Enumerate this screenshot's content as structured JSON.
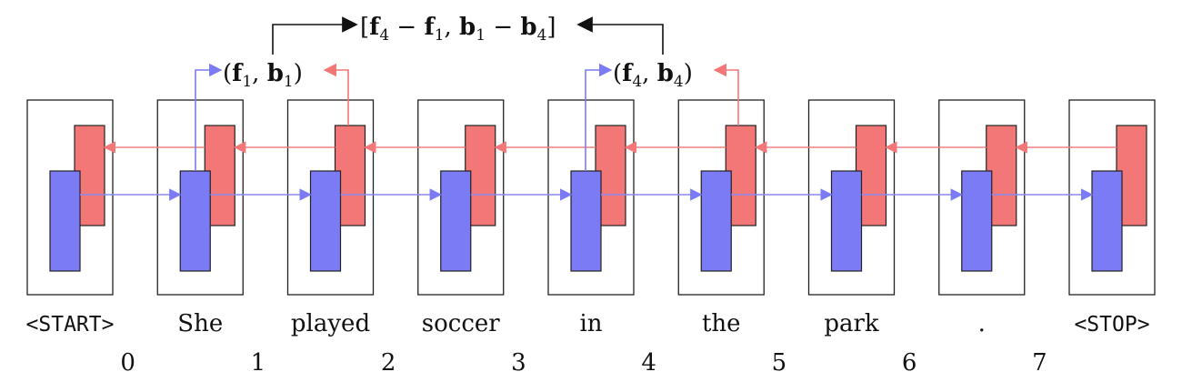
{
  "tokens": [
    {
      "text": "<START>",
      "mono": true
    },
    {
      "text": "She",
      "mono": false
    },
    {
      "text": "played",
      "mono": false
    },
    {
      "text": "soccer",
      "mono": false
    },
    {
      "text": "in",
      "mono": false
    },
    {
      "text": "the",
      "mono": false
    },
    {
      "text": "park",
      "mono": false
    },
    {
      "text": ".",
      "mono": false
    },
    {
      "text": "<STOP>",
      "mono": true
    }
  ],
  "boundaries": [
    "0",
    "1",
    "2",
    "3",
    "4",
    "5",
    "6",
    "7"
  ],
  "span_labels": {
    "left": {
      "open": "(",
      "f": "f",
      "f_sub": "1",
      "comma": ", ",
      "b": "b",
      "b_sub": "1",
      "close": ")"
    },
    "right": {
      "open": "(",
      "f": "f",
      "f_sub": "4",
      "comma": ", ",
      "b": "b",
      "b_sub": "4",
      "close": ")"
    },
    "top": {
      "open": "[",
      "f1": "f",
      "f1_sub": "4",
      "minus1": " − ",
      "f2": "f",
      "f2_sub": "1",
      "comma": ", ",
      "b1": "b",
      "b1_sub": "1",
      "minus2": " − ",
      "b2": "b",
      "b2_sub": "4",
      "close": "]"
    }
  },
  "colors": {
    "forward": "#7b7bf5",
    "forward_line": "#8a8af0",
    "backward": "#f47777",
    "backward_line": "#ee8080",
    "frame": "#222222",
    "text": "#111111"
  }
}
